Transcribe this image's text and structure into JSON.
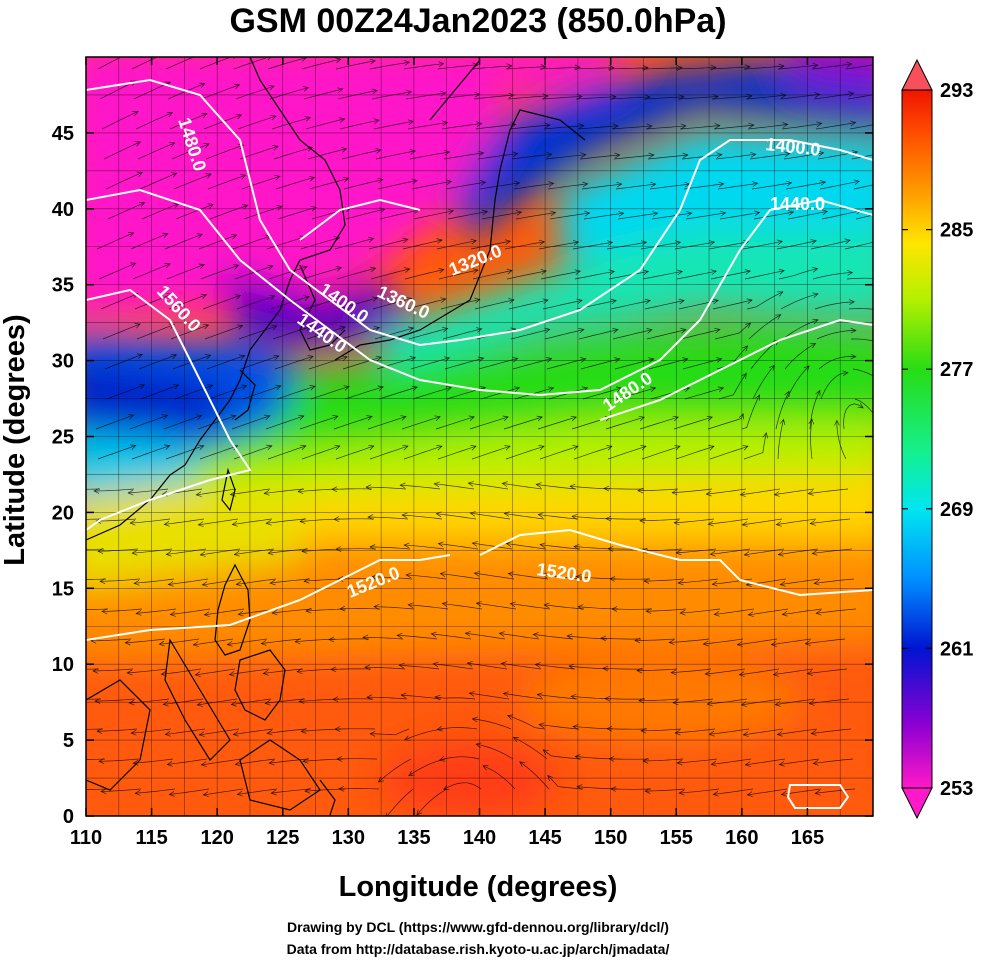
{
  "title": "GSM 00Z24Jan2023 (850.0hPa)",
  "xlabel": "Longitude (degrees)",
  "ylabel": "Latitude  (degrees)",
  "credits": [
    "Drawing by DCL (https://www.gfd-dennou.org/library/dcl/)",
    "Data from http://database.rish.kyoto-u.ac.jp/arch/jmadata/"
  ],
  "map": {
    "lon_range": [
      110,
      170
    ],
    "lat_range": [
      0,
      50
    ],
    "x_ticks": [
      "110",
      "115",
      "120",
      "125",
      "130",
      "135",
      "140",
      "145",
      "150",
      "155",
      "160",
      "165"
    ],
    "y_ticks": [
      "0",
      "5",
      "10",
      "15",
      "20",
      "25",
      "30",
      "35",
      "40",
      "45"
    ],
    "grid": "on",
    "shaded_field": "temperature",
    "contour_field": "geopotential height",
    "vector_field": "wind streamlines"
  },
  "colorbar": {
    "ticks": [
      "253",
      "261",
      "269",
      "277",
      "285",
      "293"
    ],
    "range": [
      253,
      293
    ],
    "colors": [
      "#ff19c8",
      "#8c00d2",
      "#0014d2",
      "#0090ff",
      "#00e6f0",
      "#14f090",
      "#28dc14",
      "#b4f000",
      "#ffe600",
      "#ff9600",
      "#ff4b00",
      "#f01400"
    ]
  },
  "contour_labels": [
    {
      "text": "1480.0"
    },
    {
      "text": "1560.0"
    },
    {
      "text": "1400.0"
    },
    {
      "text": "1440.0"
    },
    {
      "text": "1360.0"
    },
    {
      "text": "1320.0"
    },
    {
      "text": "1400.0"
    },
    {
      "text": "1440.0"
    },
    {
      "text": "1480.0"
    },
    {
      "text": "1520.0"
    },
    {
      "text": "1520.0"
    }
  ]
}
